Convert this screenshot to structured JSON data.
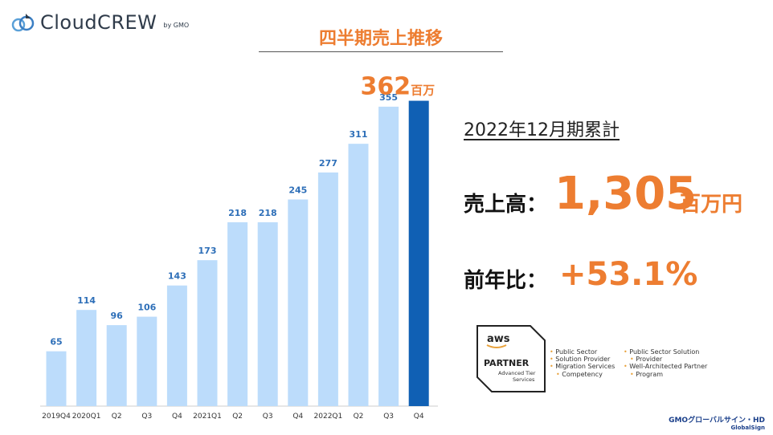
{
  "logo": {
    "text": "CloudCREW",
    "by": "by GMO"
  },
  "chart_data": {
    "type": "bar",
    "title": "四半期売上推移",
    "categories": [
      "2019Q4",
      "2020Q1",
      "Q2",
      "Q3",
      "Q4",
      "2021Q1",
      "Q2",
      "Q3",
      "Q4",
      "2022Q1",
      "Q2",
      "Q3",
      "Q4"
    ],
    "values": [
      65,
      114,
      96,
      106,
      143,
      173,
      218,
      218,
      245,
      277,
      311,
      355,
      362
    ],
    "ylim": [
      0,
      380
    ],
    "highlight_index": 12,
    "highlight_label": {
      "value": "362",
      "unit": "百万"
    },
    "colors": {
      "bar": "#bcdcfb",
      "highlight": "#1060b4",
      "value_label": "#2e6fb8",
      "title": "#ed7d31"
    }
  },
  "summary": {
    "cumulative_label": "2022年12月期累計",
    "sales": {
      "label": "売上高：",
      "value": "1,305",
      "unit": "百万円"
    },
    "yoy": {
      "label": "前年比：",
      "value": "+53.1%"
    }
  },
  "partner": {
    "aws": "aws",
    "partner": "PARTNER",
    "tier": [
      "Advanced Tier",
      "Services"
    ],
    "items_left": [
      "Public Sector",
      "Solution Provider",
      "Migration Services",
      "Competency"
    ],
    "items_right": [
      "Public Sector Solution",
      "Provider",
      "Well-Architected Partner",
      "Program"
    ]
  },
  "footer": {
    "company": "GMOグローバルサイン・HD",
    "sub": "GlobalSign"
  }
}
